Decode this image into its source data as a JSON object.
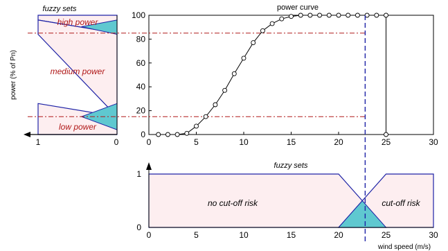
{
  "chart_data": [
    {
      "type": "area",
      "title": "fuzzy sets",
      "ylabel": "power (% of Pn)",
      "xlim": [
        1,
        0
      ],
      "x_ticks": [
        "1",
        "0"
      ],
      "sets": [
        {
          "name": "high power",
          "points": [
            [
              0,
              100
            ],
            [
              1,
              100
            ],
            [
              1,
              96
            ],
            [
              0,
              85
            ]
          ]
        },
        {
          "name": "medium power",
          "points": [
            [
              0,
              85
            ],
            [
              1,
              96
            ],
            [
              1,
              84
            ],
            [
              0,
              15
            ]
          ]
        },
        {
          "name": "low power",
          "points": [
            [
              0,
              15
            ],
            [
              1,
              26
            ],
            [
              1,
              0
            ],
            [
              0,
              0
            ]
          ]
        }
      ],
      "overlap_regions": [
        {
          "between": [
            "medium power",
            "high power"
          ],
          "points": [
            [
              0.45,
              90.4
            ],
            [
              0,
              96
            ],
            [
              0,
              84
            ]
          ]
        },
        {
          "between": [
            "low power",
            "medium power"
          ],
          "points": [
            [
              0.45,
              15
            ],
            [
              0,
              26
            ],
            [
              0,
              4
            ]
          ]
        }
      ],
      "colors": {
        "fill": "#fdeef0",
        "edge": "#1d22a6",
        "overlap": "#5fc8d0",
        "label": "#b01818"
      }
    },
    {
      "type": "line",
      "title": "power curve",
      "xlabel": "",
      "ylabel": "",
      "xlim": [
        0,
        30
      ],
      "ylim": [
        0,
        100
      ],
      "x_ticks": [
        0,
        5,
        10,
        15,
        20,
        25,
        30
      ],
      "y_ticks": [
        0,
        20,
        40,
        60,
        80,
        100
      ],
      "series": [
        {
          "x": [
            1,
            2,
            3,
            4,
            5,
            6,
            7,
            8,
            9,
            10,
            11,
            12,
            13,
            14,
            15,
            16,
            17,
            18,
            19,
            20,
            21,
            22,
            23,
            24,
            25
          ],
          "y": [
            0,
            0,
            0,
            1,
            7,
            15,
            25,
            37,
            51,
            64,
            77,
            87,
            93,
            97,
            99,
            100,
            100,
            100,
            100,
            100,
            100,
            100,
            100,
            100,
            100
          ],
          "marker": "circle",
          "color": "#000000"
        }
      ],
      "cutoff_drop": {
        "x": 25,
        "from": 100,
        "to": 0
      },
      "threshold_lines": [
        85,
        15
      ],
      "vertical_marker": 22.8,
      "colors": {
        "threshold": "#b01818",
        "marker": "#1d22a6"
      }
    },
    {
      "type": "area",
      "title": "fuzzy sets",
      "xlabel": "wind speed (m/s)",
      "xlim": [
        0,
        30
      ],
      "ylim": [
        0,
        1
      ],
      "x_ticks": [
        0,
        5,
        10,
        15,
        20,
        25,
        30
      ],
      "y_ticks": [
        0,
        1
      ],
      "sets": [
        {
          "name": "no cut-off risk",
          "points": [
            [
              0,
              0
            ],
            [
              0,
              1
            ],
            [
              20,
              1
            ],
            [
              25,
              0
            ]
          ]
        },
        {
          "name": "cut-off risk",
          "points": [
            [
              20,
              0
            ],
            [
              25,
              1
            ],
            [
              30,
              1
            ],
            [
              30,
              0
            ]
          ]
        }
      ],
      "overlap_region": {
        "points": [
          [
            20,
            0
          ],
          [
            22.5,
            0.5
          ],
          [
            25,
            0
          ]
        ]
      },
      "vertical_marker": 22.8,
      "colors": {
        "fill": "#fdeef0",
        "edge": "#1d22a6",
        "overlap": "#5fc8d0",
        "marker": "#1d22a6"
      }
    }
  ]
}
